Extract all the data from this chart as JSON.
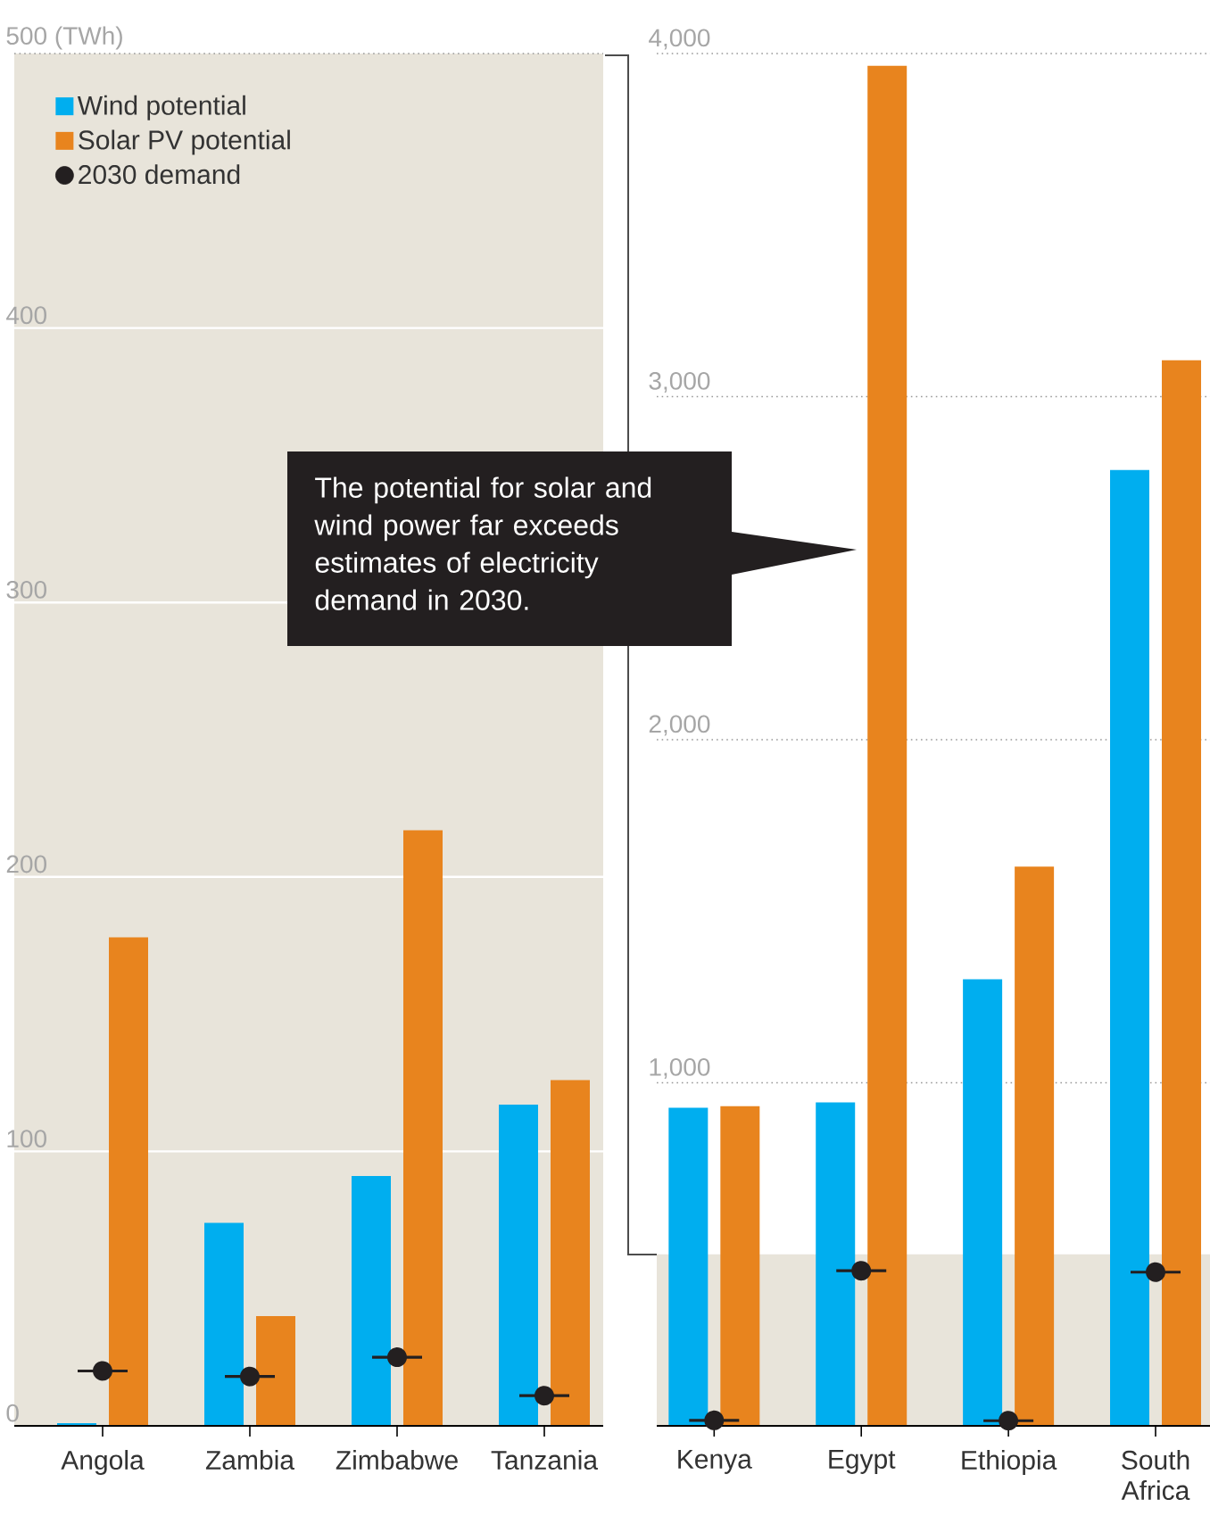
{
  "chart_data": [
    {
      "type": "bar",
      "categories": [
        "Angola",
        "Zambia",
        "Zimbabwe",
        "Tanzania"
      ],
      "series": [
        {
          "name": "Wind potential",
          "color": "#00aeef",
          "values": [
            1,
            74,
            91,
            117
          ]
        },
        {
          "name": "Solar PV potential",
          "color": "#e8841e",
          "values": [
            178,
            40,
            217,
            126
          ]
        },
        {
          "name": "2030 demand",
          "type": "scatter",
          "marker": "circle",
          "color": "#231f20",
          "values": [
            20,
            18,
            25,
            11
          ]
        }
      ],
      "ylim": [
        0,
        500
      ],
      "yticks": [
        0,
        100,
        200,
        300,
        400,
        {
          "value": 500,
          "label": "500 (TWh)"
        }
      ],
      "grid": "y",
      "legend": "top left",
      "bands": [
        {
          "axis": "y",
          "from": 0,
          "to": 500,
          "color": "#e8e4da"
        }
      ]
    },
    {
      "type": "bar",
      "categories": [
        "Kenya",
        "Egypt",
        "Ethiopia",
        "South Africa"
      ],
      "series": [
        {
          "color": "#00aeef",
          "values": [
            927,
            943,
            1302,
            2786
          ]
        },
        {
          "color": "#e8841e",
          "values": [
            932,
            3964,
            1630,
            3106
          ]
        },
        {
          "type": "scatter",
          "marker": "circle",
          "color": "#231f20",
          "values": [
            16,
            452,
            15,
            448
          ]
        }
      ],
      "ylim": [
        0,
        4000
      ],
      "yticks": [
        {
          "value": 1000,
          "label": "1,000"
        },
        {
          "value": 2000,
          "label": "2,000"
        },
        {
          "value": 3000,
          "label": "3,000"
        },
        {
          "value": 4000,
          "label": "4,000"
        }
      ],
      "grid": "y",
      "bands": [
        {
          "axis": "y",
          "from": 0,
          "to": 500,
          "color": "#e8e4da"
        }
      ],
      "annotations": [
        "The potential for solar and wind power far exceeds estimates of electricity demand in 2030."
      ]
    }
  ]
}
